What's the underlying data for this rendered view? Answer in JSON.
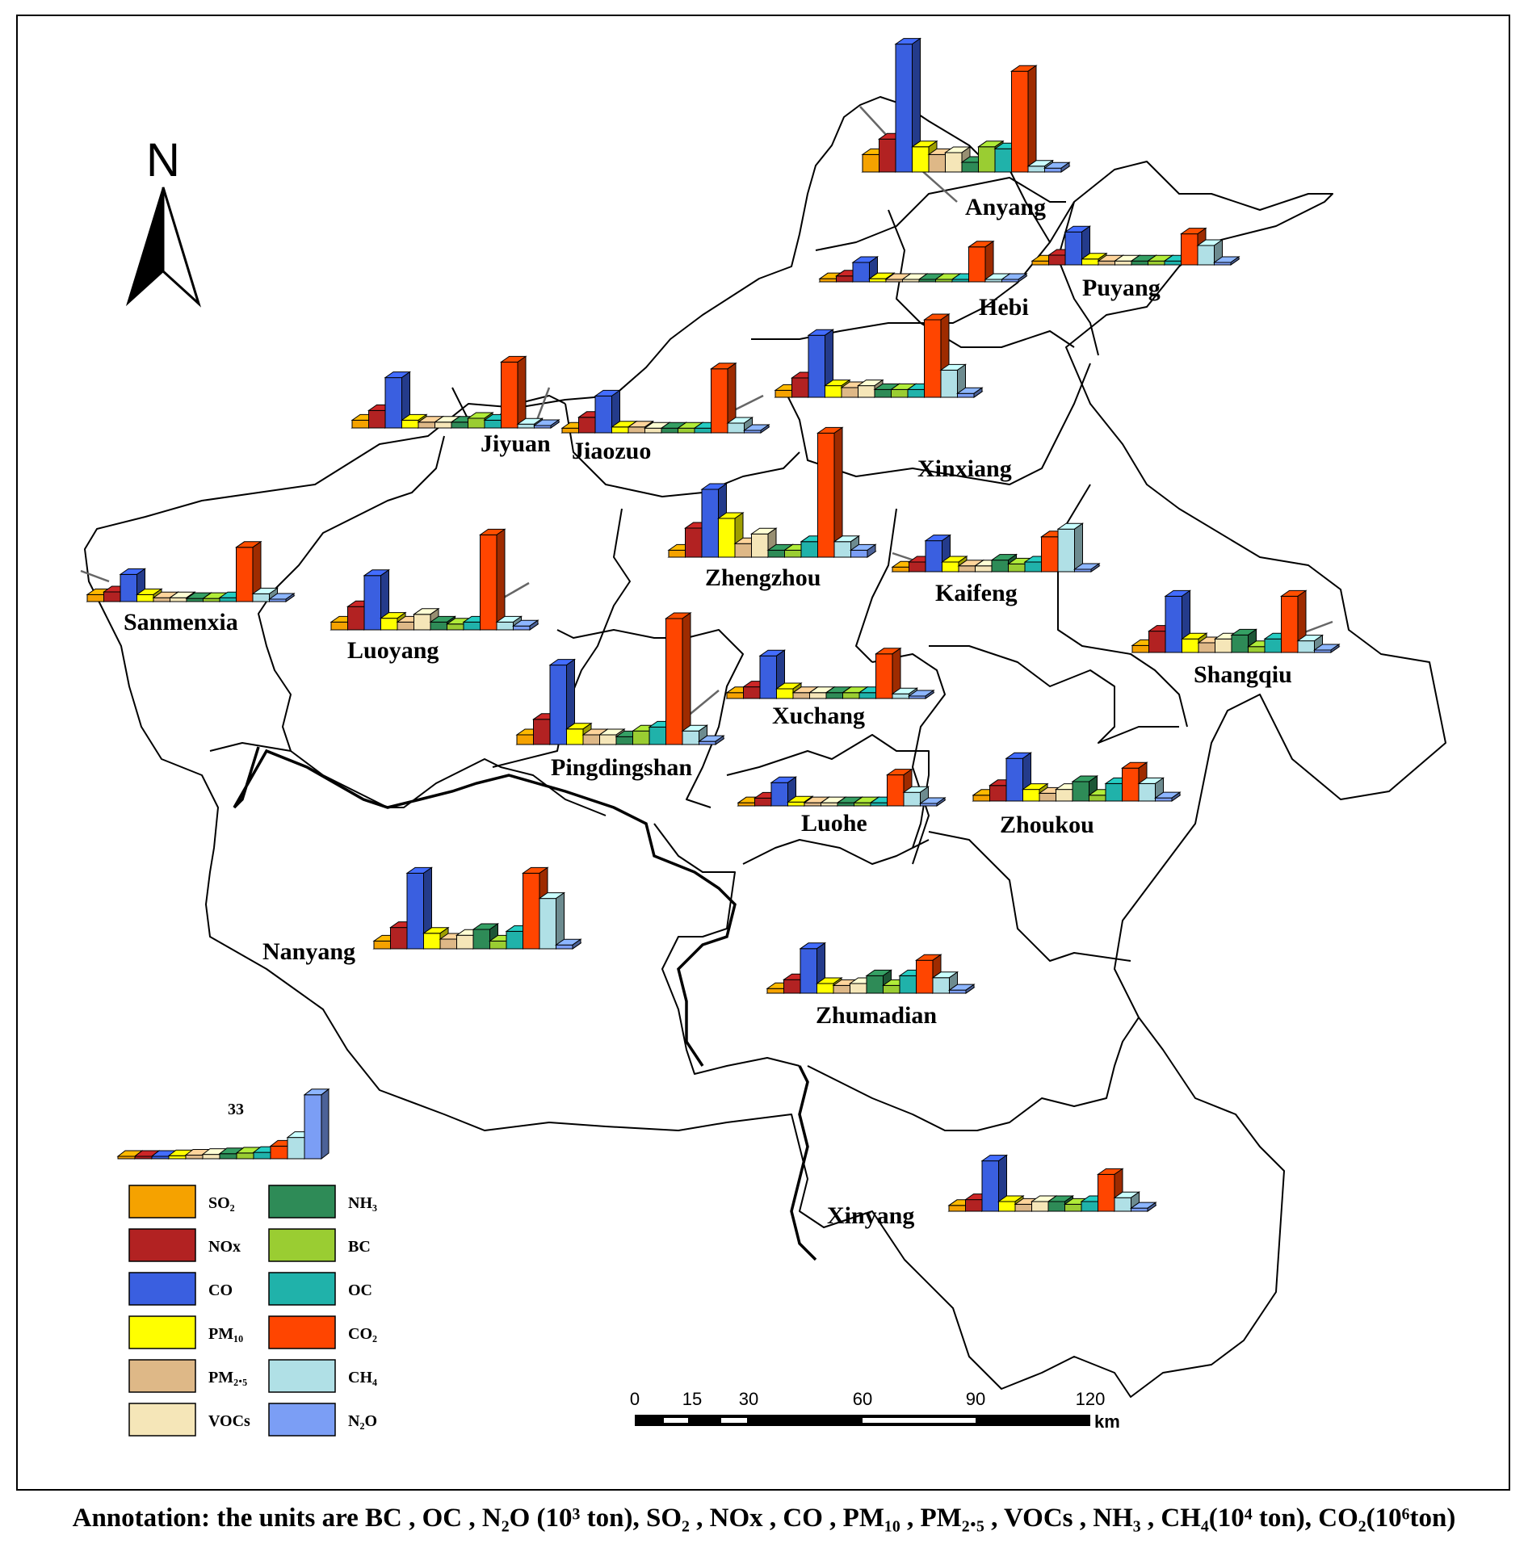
{
  "legend_scale_label": "33",
  "north_label": "N",
  "pollutants": [
    {
      "key": "so2",
      "label": "SO₂",
      "color": "#f5a200"
    },
    {
      "key": "nox",
      "label": "NOx",
      "color": "#b22222"
    },
    {
      "key": "co",
      "label": "CO",
      "color": "#3a5fe0"
    },
    {
      "key": "pm10",
      "label": "PM₁₀",
      "color": "#ffff00"
    },
    {
      "key": "pm25",
      "label": "PM₂.₅",
      "color": "#deb887"
    },
    {
      "key": "vocs",
      "label": "VOCs",
      "color": "#f5e6b8"
    },
    {
      "key": "nh3",
      "label": "NH₃",
      "color": "#2e8b57"
    },
    {
      "key": "bc",
      "label": "BC",
      "color": "#9acd32"
    },
    {
      "key": "oc",
      "label": "OC",
      "color": "#20b2aa"
    },
    {
      "key": "co2",
      "label": "CO₂",
      "color": "#ff4500"
    },
    {
      "key": "ch4",
      "label": "CH₄",
      "color": "#b0e0e6"
    },
    {
      "key": "n2o",
      "label": "N₂O",
      "color": "#7b9ef5"
    }
  ],
  "chart_data": {
    "type": "bar",
    "categories": [
      "SO2",
      "NOx",
      "CO",
      "PM10",
      "PM2.5",
      "VOCs",
      "NH3",
      "BC",
      "OC",
      "CO2",
      "CH4",
      "N2O"
    ],
    "series": [
      {
        "name": "Anyang",
        "values": [
          4.5,
          8.5,
          33,
          6.5,
          4.5,
          5,
          2.5,
          6.5,
          6,
          26,
          1.5,
          1
        ]
      },
      {
        "name": "Puyang",
        "values": [
          1,
          2.5,
          8.5,
          1.5,
          1,
          1,
          1,
          1,
          1,
          8,
          5,
          0.5
        ]
      },
      {
        "name": "Hebi",
        "values": [
          0.8,
          1.5,
          5,
          0.8,
          0.5,
          0.5,
          0.5,
          0.5,
          0.5,
          9,
          0.5,
          0.5
        ]
      },
      {
        "name": "Xinxiang",
        "values": [
          1.8,
          5,
          16,
          3,
          2.5,
          3,
          2,
          2,
          2,
          20,
          7,
          1
        ]
      },
      {
        "name": "Jiyuan",
        "values": [
          2,
          4.5,
          13,
          2,
          1.5,
          1.5,
          1.5,
          2.5,
          2,
          17,
          1,
          0.5
        ]
      },
      {
        "name": "Jiaozuo",
        "values": [
          1.2,
          4,
          9.5,
          1.5,
          1.5,
          1.2,
          1.2,
          1.2,
          1.2,
          16.5,
          2.5,
          0.6
        ]
      },
      {
        "name": "Sanmenxia",
        "values": [
          1.8,
          2.5,
          7,
          1.8,
          1,
          1,
          0.8,
          0.8,
          1,
          14,
          2,
          0.5
        ]
      },
      {
        "name": "Luoyang",
        "values": [
          2,
          6,
          14,
          3,
          2,
          4,
          2,
          1.5,
          2,
          24.5,
          2,
          1
        ]
      },
      {
        "name": "Zhengzhou",
        "values": [
          1.8,
          7.5,
          17.5,
          10,
          3.5,
          6,
          1.8,
          1.8,
          4,
          32,
          4,
          1.8
        ]
      },
      {
        "name": "Kaifeng",
        "values": [
          1.2,
          2.5,
          8,
          2.5,
          1.5,
          1.5,
          3,
          2,
          2.5,
          9,
          11,
          0.5
        ]
      },
      {
        "name": "Shangqiu",
        "values": [
          1.8,
          5.5,
          14.5,
          3.5,
          2.5,
          3.5,
          4.5,
          1.5,
          3.5,
          14.5,
          3,
          0.5
        ]
      },
      {
        "name": "Pingdingshan",
        "values": [
          2.5,
          6.5,
          20.5,
          4,
          2.5,
          2.5,
          2,
          3.5,
          4.5,
          32.5,
          3.5,
          0.8
        ]
      },
      {
        "name": "Xuchang",
        "values": [
          1.5,
          3,
          11,
          2.5,
          1.5,
          1.5,
          1.5,
          1.5,
          1.5,
          11.5,
          1.2,
          0.6
        ]
      },
      {
        "name": "Luohe",
        "values": [
          0.8,
          2,
          6,
          1,
          0.8,
          0.8,
          0.8,
          0.8,
          0.8,
          8,
          3.5,
          0.5
        ]
      },
      {
        "name": "Zhoukou",
        "values": [
          1.5,
          4,
          11,
          3,
          2,
          3,
          5,
          1.5,
          4.5,
          8.5,
          4.5,
          0.8
        ]
      },
      {
        "name": "Nanyang",
        "values": [
          2,
          5.5,
          19.5,
          4,
          2.5,
          3.5,
          5,
          2,
          4.5,
          19.5,
          13,
          1
        ]
      },
      {
        "name": "Zhumadian",
        "values": [
          1.2,
          3.5,
          11.5,
          2.5,
          2,
          2.5,
          4.5,
          2,
          4.5,
          8.5,
          4,
          0.8
        ]
      },
      {
        "name": "Xinyang",
        "values": [
          1.5,
          3,
          13,
          2.5,
          1.8,
          2.5,
          2.5,
          1.8,
          2.5,
          9.5,
          3.5,
          0.8
        ]
      }
    ],
    "legend_scale_value": 33
  },
  "cities": [
    {
      "name": "Anyang"
    },
    {
      "name": "Puyang"
    },
    {
      "name": "Hebi"
    },
    {
      "name": "Xinxiang"
    },
    {
      "name": "Jiyuan"
    },
    {
      "name": "Jiaozuo"
    },
    {
      "name": "Sanmenxia"
    },
    {
      "name": "Luoyang"
    },
    {
      "name": "Zhengzhou"
    },
    {
      "name": "Kaifeng"
    },
    {
      "name": "Shangqiu"
    },
    {
      "name": "Pingdingshan"
    },
    {
      "name": "Xuchang"
    },
    {
      "name": "Luohe"
    },
    {
      "name": "Zhoukou"
    },
    {
      "name": "Nanyang"
    },
    {
      "name": "Zhumadian"
    },
    {
      "name": "Xinyang"
    }
  ],
  "scale_bar": {
    "ticks": [
      "0",
      "15",
      "30",
      "60",
      "90",
      "120"
    ],
    "unit": "km"
  },
  "annotation": "Annotation: the units are BC , OC , N₂O (10³ ton), SO₂ , NOx , CO , PM₁₀ , PM₂.₅ , VOCs , NH₃ , CH₄(10⁴ ton), CO₂(10⁶ton)"
}
